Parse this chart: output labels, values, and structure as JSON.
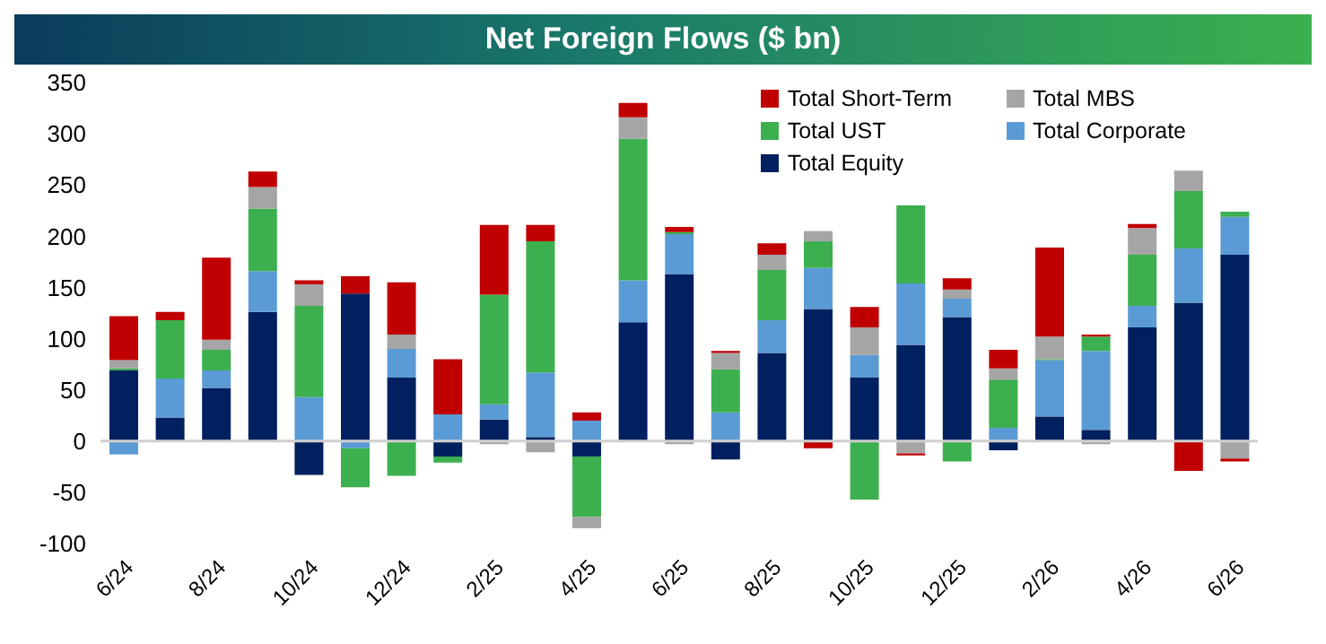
{
  "chart_data": {
    "type": "bar",
    "title": "Net Foreign Flows ($ bn)",
    "stacked": true,
    "categories": [
      "6/24",
      null,
      "8/24",
      null,
      "10/24",
      null,
      "12/24",
      null,
      "2/25",
      null,
      "4/25",
      null,
      "6/25",
      null,
      "8/25",
      null,
      "10/25",
      null,
      "12/25",
      null,
      "2/26",
      null,
      "4/26",
      null,
      "6/26"
    ],
    "series": [
      {
        "name": "Total Equity",
        "color": "#002060",
        "values": [
          69,
          23,
          52,
          126,
          -33,
          144,
          62,
          -15,
          21,
          4,
          -15,
          116,
          163,
          -18,
          86,
          129,
          62,
          94,
          121,
          -9,
          24,
          11,
          111,
          135,
          182
        ]
      },
      {
        "name": "Total Corporate",
        "color": "#5b9bd5",
        "values": [
          -13,
          38,
          17,
          40,
          43,
          -7,
          28,
          26,
          15,
          63,
          20,
          41,
          39,
          28,
          32,
          40,
          22,
          60,
          18,
          13,
          55,
          77,
          21,
          53,
          37
        ]
      },
      {
        "name": "Total UST",
        "color": "#3cb04e",
        "values": [
          2,
          57,
          20,
          61,
          89,
          -38,
          -34,
          -6,
          107,
          128,
          -59,
          138,
          2,
          42,
          49,
          26,
          -57,
          76,
          -20,
          47,
          1,
          14,
          50,
          56,
          5
        ]
      },
      {
        "name": "Total MBS",
        "color": "#a5a5a5",
        "values": [
          8,
          0,
          10,
          21,
          21,
          0,
          14,
          0,
          -3,
          -11,
          -11,
          21,
          -3,
          16,
          15,
          10,
          27,
          -12,
          9,
          11,
          22,
          -3,
          26,
          20,
          -17
        ]
      },
      {
        "name": "Total Short-Term",
        "color": "#c00000",
        "values": [
          43,
          8,
          80,
          15,
          4,
          17,
          51,
          54,
          68,
          16,
          8,
          14,
          5,
          2,
          11,
          -7,
          20,
          -2,
          11,
          18,
          87,
          2,
          4,
          -29,
          -3
        ]
      }
    ],
    "ylim": [
      -100,
      350
    ],
    "yticks": [
      -100,
      -50,
      0,
      50,
      100,
      150,
      200,
      250,
      300,
      350
    ],
    "legend": "top right"
  }
}
